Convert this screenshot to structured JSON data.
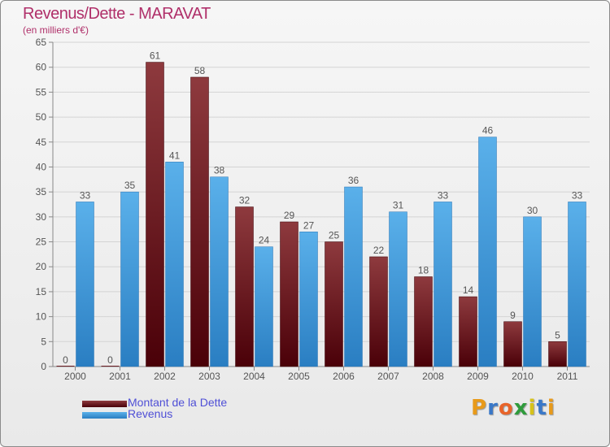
{
  "title": "Revenus/Dette - MARAVAT",
  "subtitle": "(en milliers d'€)",
  "chart_data": {
    "type": "bar",
    "categories": [
      "2000",
      "2001",
      "2002",
      "2003",
      "2004",
      "2005",
      "2006",
      "2007",
      "2008",
      "2009",
      "2010",
      "2011"
    ],
    "series": [
      {
        "name": "Montant de la Dette",
        "values": [
          0,
          0,
          61,
          58,
          32,
          29,
          25,
          22,
          18,
          14,
          9,
          5
        ],
        "color": "#7a1e22"
      },
      {
        "name": "Revenus",
        "values": [
          33,
          35,
          41,
          38,
          24,
          27,
          36,
          31,
          33,
          46,
          30,
          33
        ],
        "color": "#4ea1e0"
      }
    ],
    "ylim": [
      0,
      65
    ],
    "yticks": [
      0,
      5,
      10,
      15,
      20,
      25,
      30,
      35,
      40,
      45,
      50,
      55,
      60,
      65
    ],
    "grid": true,
    "legend_position": "bottom-left"
  },
  "legend": {
    "items": [
      {
        "label": "Montant de la Dette",
        "color": "#7a1e22"
      },
      {
        "label": "Revenus",
        "color": "#4ea1e0"
      }
    ]
  },
  "logo": {
    "letters": [
      "P",
      "r",
      "o",
      "x",
      "i",
      "t",
      "i"
    ],
    "colors": [
      "#e89a1a",
      "#3a78c8",
      "#e8642a",
      "#2f9b3c",
      "#d6c21a",
      "#3a78c8",
      "#e89a1a"
    ]
  }
}
